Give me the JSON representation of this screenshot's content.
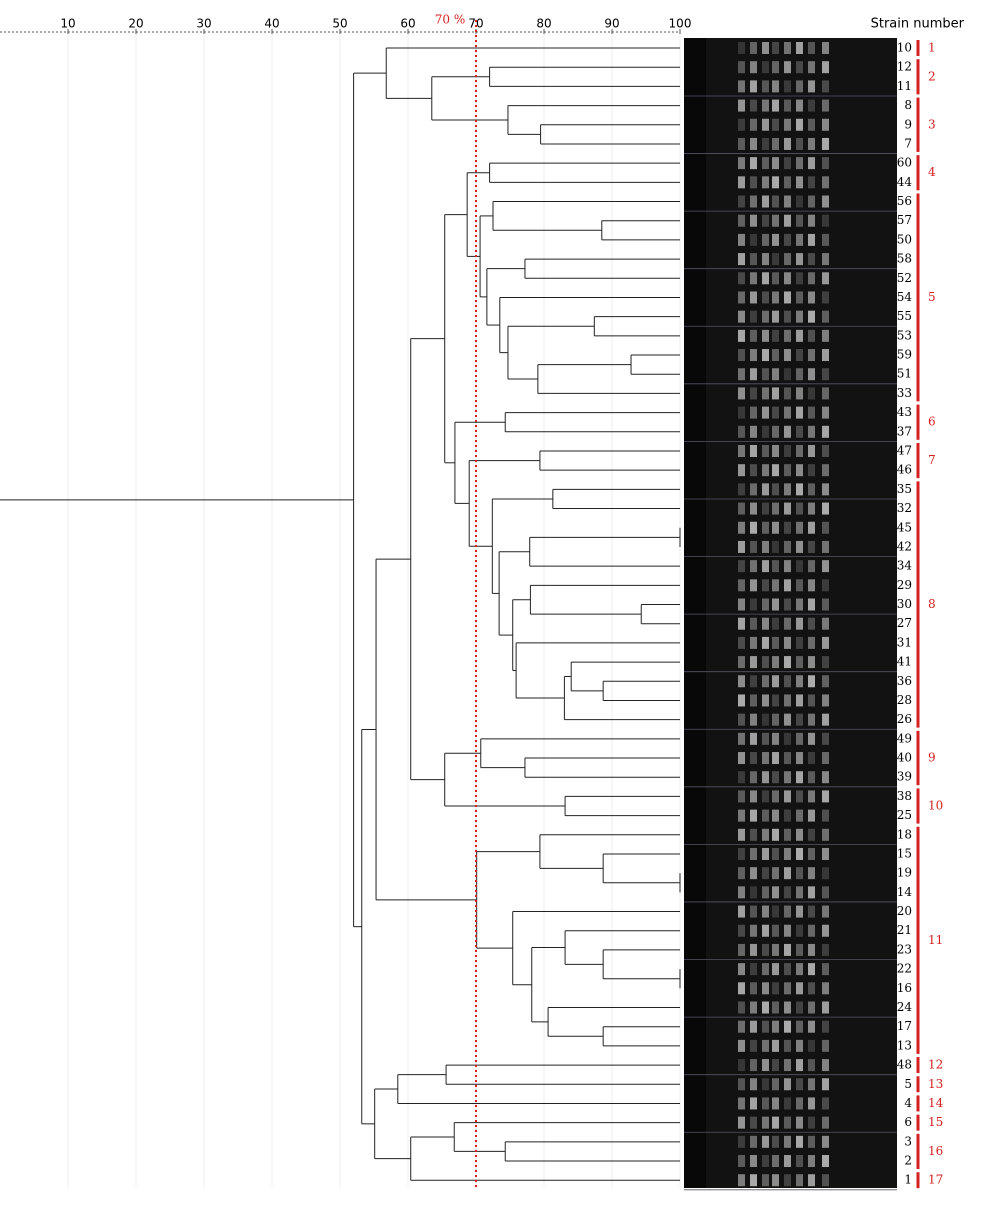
{
  "chart_data": {
    "type": "dendrogram",
    "xlim": [
      0,
      100
    ],
    "xticks": [
      10,
      20,
      30,
      40,
      50,
      60,
      70,
      80,
      90,
      100
    ],
    "threshold": {
      "value": 70,
      "label": "70 %",
      "color": "#d62020"
    },
    "leaf_title": "Strain number",
    "line_color": "#222222",
    "group_color": "#d62020",
    "tree": {
      "value": 52,
      "children": [
        {
          "value": 56.8,
          "children": [
            "10",
            {
              "value": 63.5,
              "children": [
                {
                  "value": 72,
                  "children": [
                    "12",
                    "11"
                  ]
                },
                {
                  "value": 74.7,
                  "children": [
                    "8",
                    {
                      "value": 79.5,
                      "children": [
                        "9",
                        "7"
                      ]
                    }
                  ]
                }
              ]
            }
          ]
        },
        {
          "value": 53.2,
          "children": [
            {
              "value": 55.3,
              "children": [
                {
                  "value": 60.4,
                  "children": [
                    {
                      "value": 65.4,
                      "children": [
                        {
                          "value": 68.7,
                          "children": [
                            {
                              "value": 72,
                              "children": [
                                "60",
                                "44"
                              ]
                            },
                            {
                              "value": 70.6,
                              "children": [
                                {
                                  "value": 72.5,
                                  "children": [
                                    "56",
                                    {
                                      "value": 88.5,
                                      "children": [
                                        "57",
                                        "50"
                                      ]
                                    }
                                  ]
                                },
                                {
                                  "value": 71.6,
                                  "children": [
                                    {
                                      "value": 77.2,
                                      "children": [
                                        "58",
                                        "52"
                                      ]
                                    },
                                    {
                                      "value": 73.5,
                                      "children": [
                                        "54",
                                        {
                                          "value": 74.7,
                                          "children": [
                                            {
                                              "value": 87.4,
                                              "children": [
                                                "55",
                                                "53"
                                              ]
                                            },
                                            {
                                              "value": 79.1,
                                              "children": [
                                                {
                                                  "value": 92.8,
                                                  "children": [
                                                    "59",
                                                    "51"
                                                  ]
                                                },
                                                "33"
                                              ]
                                            }
                                          ]
                                        }
                                      ]
                                    }
                                  ]
                                }
                              ]
                            }
                          ]
                        },
                        {
                          "value": 66.9,
                          "children": [
                            {
                              "value": 74.3,
                              "children": [
                                "43",
                                "37"
                              ]
                            },
                            {
                              "value": 69,
                              "children": [
                                {
                                  "value": 79.4,
                                  "children": [
                                    "47",
                                    "46"
                                  ]
                                },
                                {
                                  "value": 72.4,
                                  "children": [
                                    {
                                      "value": 81.3,
                                      "children": [
                                        "35",
                                        "32"
                                      ]
                                    },
                                    {
                                      "value": 73.4,
                                      "children": [
                                        {
                                          "value": 77.9,
                                          "children": [
                                            {
                                              "value": 100,
                                              "children": [
                                                "45",
                                                "42"
                                              ]
                                            },
                                            "34"
                                          ]
                                        },
                                        {
                                          "value": 75.4,
                                          "children": [
                                            {
                                              "value": 78,
                                              "children": [
                                                "29",
                                                {
                                                  "value": 94.3,
                                                  "children": [
                                                    "30",
                                                    "27"
                                                  ]
                                                }
                                              ]
                                            },
                                            {
                                              "value": 75.9,
                                              "children": [
                                                "31",
                                                {
                                                  "value": 83,
                                                  "children": [
                                                    {
                                                      "value": 84,
                                                      "children": [
                                                        "41",
                                                        {
                                                          "value": 88.7,
                                                          "children": [
                                                            "36",
                                                            "28"
                                                          ]
                                                        }
                                                      ]
                                                    },
                                                    "26"
                                                  ]
                                                }
                                              ]
                                            }
                                          ]
                                        }
                                      ]
                                    }
                                  ]
                                }
                              ]
                            }
                          ]
                        }
                      ]
                    },
                    {
                      "value": 65.4,
                      "children": [
                        {
                          "value": 70.7,
                          "children": [
                            "49",
                            {
                              "value": 77.2,
                              "children": [
                                "40",
                                "39"
                              ]
                            }
                          ]
                        },
                        {
                          "value": 83.1,
                          "children": [
                            "38",
                            "25"
                          ]
                        }
                      ]
                    }
                  ]
                },
                {
                  "value": 70.1,
                  "children": [
                    {
                      "value": 79.4,
                      "children": [
                        "18",
                        {
                          "value": 88.7,
                          "children": [
                            "15",
                            {
                              "value": 100,
                              "children": [
                                "19",
                                "14"
                              ]
                            }
                          ]
                        }
                      ]
                    },
                    {
                      "value": 75.4,
                      "children": [
                        "20",
                        {
                          "value": 78.2,
                          "children": [
                            {
                              "value": 83.1,
                              "children": [
                                "21",
                                {
                                  "value": 88.7,
                                  "children": [
                                    "23",
                                    {
                                      "value": 100,
                                      "children": [
                                        "22",
                                        "16"
                                      ]
                                    }
                                  ]
                                }
                              ]
                            },
                            {
                              "value": 80.6,
                              "children": [
                                "24",
                                {
                                  "value": 88.7,
                                  "children": [
                                    "17",
                                    "13"
                                  ]
                                }
                              ]
                            }
                          ]
                        }
                      ]
                    }
                  ]
                }
              ]
            },
            {
              "value": 55.1,
              "children": [
                {
                  "value": 58.5,
                  "children": [
                    {
                      "value": 65.6,
                      "children": [
                        "48",
                        "5"
                      ]
                    },
                    "4"
                  ]
                },
                {
                  "value": 60.4,
                  "children": [
                    {
                      "value": 66.8,
                      "children": [
                        "6",
                        {
                          "value": 74.3,
                          "children": [
                            "3",
                            "2"
                          ]
                        }
                      ]
                    },
                    "1"
                  ]
                }
              ]
            }
          ]
        }
      ]
    },
    "groups": [
      {
        "label": "1",
        "size": 1
      },
      {
        "label": "2",
        "size": 2
      },
      {
        "label": "3",
        "size": 3
      },
      {
        "label": "4",
        "size": 2
      },
      {
        "label": "5",
        "size": 11
      },
      {
        "label": "6",
        "size": 2
      },
      {
        "label": "7",
        "size": 2
      },
      {
        "label": "8",
        "size": 13
      },
      {
        "label": "9",
        "size": 3
      },
      {
        "label": "10",
        "size": 2
      },
      {
        "label": "11",
        "size": 12
      },
      {
        "label": "12",
        "size": 1
      },
      {
        "label": "13",
        "size": 1
      },
      {
        "label": "14",
        "size": 1
      },
      {
        "label": "15",
        "size": 1
      },
      {
        "label": "16",
        "size": 2
      },
      {
        "label": "17",
        "size": 1
      }
    ]
  }
}
